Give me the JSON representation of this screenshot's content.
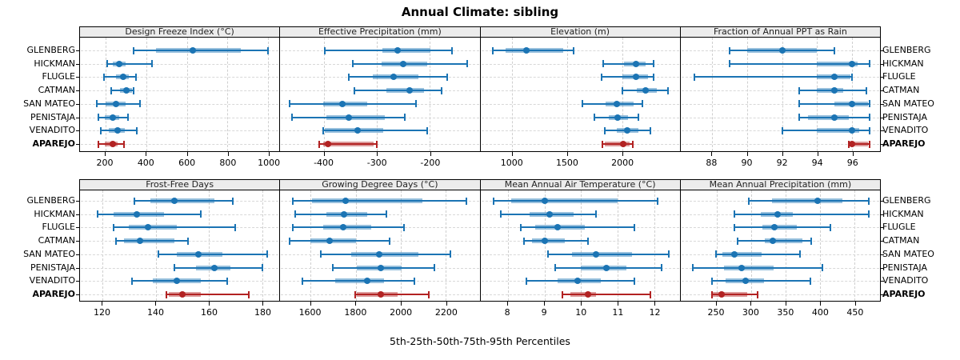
{
  "title": "Annual Climate: sibling",
  "caption": "5th-25th-50th-75th-95th Percentiles",
  "stations": [
    "GLENBERG",
    "HICKMAN",
    "FLUGLE",
    "CATMAN",
    "SAN MATEO",
    "PENISTAJA",
    "VENADITO",
    "APAREJO"
  ],
  "highlight_station": "APAREJO",
  "colors": {
    "series_blue": "#1b74b4",
    "series_red": "#b22222",
    "header_bg": "#ececec",
    "grid": "#d8d8d8"
  },
  "chart_data": {
    "type": "dotplot",
    "subtype": "percentile-whisker",
    "percentiles": [
      "5th",
      "25th",
      "50th",
      "75th",
      "95th"
    ],
    "legend_position": "none",
    "grid": "dashed",
    "stations": [
      "GLENBERG",
      "HICKMAN",
      "FLUGLE",
      "CATMAN",
      "SAN MATEO",
      "PENISTAJA",
      "VENADITO",
      "APAREJO"
    ],
    "panels": [
      {
        "title": "Design Freeze Index (°C)",
        "ticks": [
          200,
          400,
          600,
          800,
          1000
        ],
        "xlim": [
          75,
          1055
        ],
        "series": [
          [
            340,
            450,
            630,
            865,
            1000
          ],
          [
            210,
            235,
            267,
            300,
            428
          ],
          [
            191,
            250,
            286,
            315,
            350
          ],
          [
            228,
            273,
            305,
            331,
            340
          ],
          [
            158,
            202,
            250,
            299,
            370
          ],
          [
            164,
            196,
            235,
            267,
            312
          ],
          [
            177,
            218,
            258,
            297,
            353
          ],
          [
            164,
            196,
            235,
            260,
            293
          ]
        ]
      },
      {
        "title": "Effective Precipitation (mm)",
        "ticks": [
          -400,
          -300,
          -200
        ],
        "xlim": [
          -483,
          -106
        ],
        "series": [
          [
            -399,
            -290,
            -261,
            -199,
            -158
          ],
          [
            -346,
            -291,
            -250,
            -205,
            -130
          ],
          [
            -354,
            -308,
            -268,
            -222,
            -167
          ],
          [
            -342,
            -282,
            -238,
            -211,
            -178
          ],
          [
            -465,
            -401,
            -366,
            -318,
            -226
          ],
          [
            -460,
            -396,
            -354,
            -285,
            -248
          ],
          [
            -402,
            -398,
            -336,
            -288,
            -205
          ],
          [
            -409,
            -402,
            -392,
            -307,
            -301
          ]
        ]
      },
      {
        "title": "Elevation (m)",
        "ticks": [
          1000,
          1500,
          2000
        ],
        "xlim": [
          709,
          2525
        ],
        "series": [
          [
            820,
            935,
            1130,
            1460,
            1560
          ],
          [
            1830,
            2020,
            2125,
            2215,
            2290
          ],
          [
            1810,
            2000,
            2125,
            2235,
            2290
          ],
          [
            2000,
            2130,
            2210,
            2315,
            2415
          ],
          [
            1640,
            1850,
            1950,
            2105,
            2185
          ],
          [
            1745,
            1875,
            1955,
            2055,
            2150
          ],
          [
            1840,
            1950,
            2045,
            2145,
            2255
          ],
          [
            1820,
            1840,
            2010,
            2070,
            2095
          ]
        ]
      },
      {
        "title": "Fraction of Annual PPT as Rain",
        "ticks": [
          88,
          90,
          92,
          94,
          96
        ],
        "xlim": [
          86.2,
          97.6
        ],
        "series": [
          [
            89,
            90,
            92,
            94,
            95
          ],
          [
            89,
            94,
            96,
            96.3,
            97
          ],
          [
            87,
            94,
            95,
            95.9,
            96
          ],
          [
            93,
            94,
            95,
            95.5,
            96.8
          ],
          [
            93,
            95,
            96,
            96.9,
            97
          ],
          [
            93,
            93.5,
            95,
            95.8,
            97
          ],
          [
            92,
            94,
            96,
            96.4,
            97
          ],
          [
            95.8,
            95.9,
            96,
            96.9,
            97
          ]
        ]
      },
      {
        "title": "Frost-Free Days",
        "ticks": [
          120,
          140,
          160,
          180
        ],
        "xlim": [
          111.5,
          186.5
        ],
        "series": [
          [
            132,
            138,
            147,
            162,
            169
          ],
          [
            118,
            124,
            133,
            143,
            157
          ],
          [
            124,
            130,
            137,
            148,
            170
          ],
          [
            125,
            128,
            134,
            147,
            152
          ],
          [
            141,
            148,
            156,
            165,
            182
          ],
          [
            147,
            155,
            162,
            168,
            180
          ],
          [
            131,
            139,
            148,
            157,
            167
          ],
          [
            144,
            145,
            150,
            157,
            175
          ]
        ]
      },
      {
        "title": "Growing Degree Days (°C)",
        "ticks": [
          1600,
          1800,
          2000,
          2200
        ],
        "xlim": [
          1465,
          2350
        ],
        "series": [
          [
            1520,
            1605,
            1755,
            2095,
            2290
          ],
          [
            1530,
            1670,
            1748,
            1852,
            1938
          ],
          [
            1520,
            1655,
            1745,
            1870,
            2015
          ],
          [
            1505,
            1600,
            1686,
            1800,
            1950
          ],
          [
            1645,
            1780,
            1906,
            2080,
            2220
          ],
          [
            1700,
            1805,
            1910,
            2005,
            2150
          ],
          [
            1565,
            1710,
            1850,
            1925,
            2060
          ],
          [
            1798,
            1806,
            1912,
            1985,
            2125
          ]
        ]
      },
      {
        "title": "Mean Annual Air Temperature (°C)",
        "ticks": [
          8,
          9,
          10,
          11,
          12
        ],
        "xlim": [
          7.25,
          12.7
        ],
        "series": [
          [
            7.6,
            8.1,
            9,
            11,
            12.1
          ],
          [
            7.8,
            8.6,
            9.15,
            9.8,
            10.4
          ],
          [
            8.35,
            8.75,
            9.35,
            10.1,
            11.45
          ],
          [
            8.45,
            8.65,
            9,
            9.55,
            10.2
          ],
          [
            9.1,
            9.75,
            10.4,
            11.4,
            12.4
          ],
          [
            9.3,
            10,
            10.7,
            11.25,
            12.2
          ],
          [
            8.5,
            9.35,
            9.9,
            10.55,
            11.45
          ],
          [
            9.5,
            9.7,
            10.2,
            10.4,
            11.9
          ]
        ]
      },
      {
        "title": "Mean Annual Precipitation (mm)",
        "ticks": [
          250,
          300,
          350,
          400,
          450
        ],
        "xlim": [
          198,
          487
        ],
        "series": [
          [
            297,
            330,
            396,
            432,
            471
          ],
          [
            276,
            314,
            339,
            361,
            471
          ],
          [
            276,
            317,
            334,
            366,
            415
          ],
          [
            281,
            320,
            332,
            375,
            387
          ],
          [
            249,
            259,
            276,
            315,
            371
          ],
          [
            216,
            261,
            286,
            333,
            404
          ],
          [
            243,
            263,
            292,
            319,
            386
          ],
          [
            243,
            245,
            258,
            294,
            310
          ]
        ]
      }
    ]
  }
}
